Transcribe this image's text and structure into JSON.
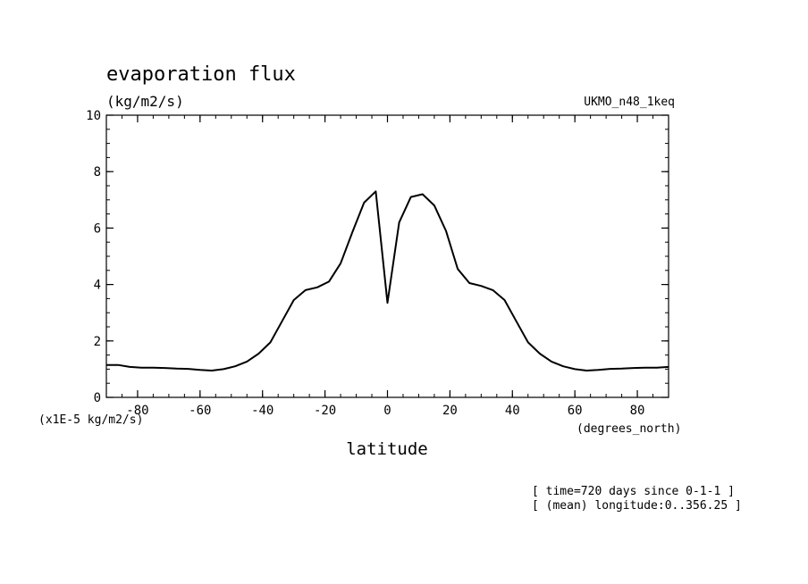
{
  "chart_data": {
    "type": "line",
    "title": "evaporation flux",
    "units": "(kg/m2/s)",
    "model": "UKMO_n48_1keq",
    "scale_label": "(x1E-5 kg/m2/s)",
    "xlabel": "latitude",
    "xunits": "(degrees_north)",
    "xlim": [
      -90,
      90
    ],
    "ylim": [
      0,
      10
    ],
    "xticks": [
      -80,
      -60,
      -40,
      -20,
      0,
      20,
      40,
      60,
      80
    ],
    "yticks": [
      0,
      2,
      4,
      6,
      8,
      10
    ],
    "xtick_labels": [
      "-80",
      "-60",
      "-40",
      "-20",
      "0",
      "20",
      "40",
      "60",
      "80"
    ],
    "ytick_labels": [
      "0",
      "2",
      "4",
      "6",
      "8",
      "10"
    ],
    "grid": false,
    "notes": [
      "[ time=720 days since 0-1-1 ]",
      "[ (mean) longitude:0..356.25 ]"
    ],
    "series": [
      {
        "x": [
          -90,
          -86.25,
          -82.5,
          -78.75,
          -75,
          -71.25,
          -67.5,
          -63.75,
          -60,
          -56.25,
          -52.5,
          -48.75,
          -45,
          -41.25,
          -37.5,
          -33.75,
          -30,
          -26.25,
          -22.5,
          -18.75,
          -15,
          -11.25,
          -7.5,
          -3.75,
          0,
          3.75,
          7.5,
          11.25,
          15,
          18.75,
          22.5,
          26.25,
          30,
          33.75,
          37.5,
          41.25,
          45,
          48.75,
          52.5,
          56.25,
          60,
          63.75,
          67.5,
          71.25,
          75,
          78.75,
          82.5,
          86.25,
          90
        ],
        "y": [
          1.15,
          1.15,
          1.08,
          1.05,
          1.05,
          1.04,
          1.02,
          1.01,
          0.97,
          0.95,
          1.0,
          1.1,
          1.27,
          1.55,
          1.95,
          2.7,
          3.45,
          3.8,
          3.9,
          4.1,
          4.75,
          5.85,
          6.9,
          7.3,
          3.35,
          6.2,
          7.1,
          7.2,
          6.8,
          5.9,
          4.55,
          4.05,
          3.95,
          3.8,
          3.45,
          2.7,
          1.95,
          1.55,
          1.27,
          1.1,
          1.0,
          0.95,
          0.97,
          1.01,
          1.02,
          1.04,
          1.05,
          1.05,
          1.08
        ]
      }
    ]
  }
}
